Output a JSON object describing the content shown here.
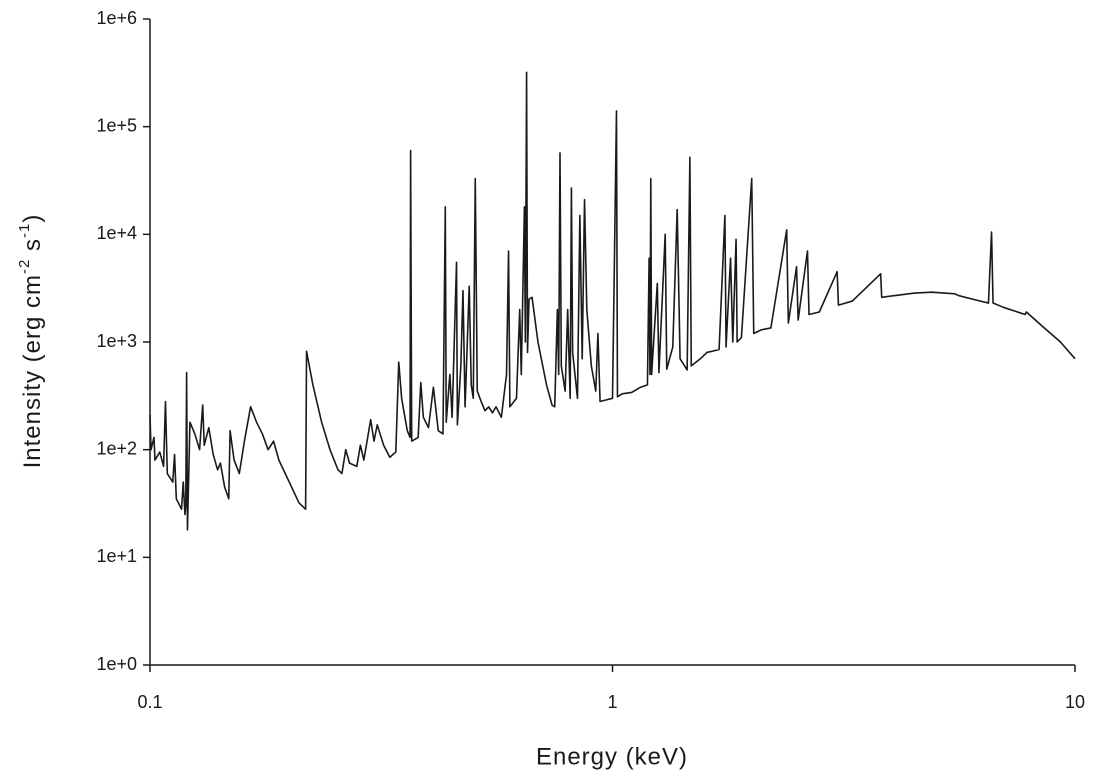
{
  "chart_data": {
    "type": "line",
    "xlabel": "Energy (keV)",
    "ylabel_parts": [
      "Intensity (erg cm",
      "-2",
      " s",
      "-1",
      ")"
    ],
    "xscale": "log",
    "yscale": "log",
    "xlim": [
      0.1,
      10
    ],
    "xticks": [
      0.1,
      1,
      10
    ],
    "ylim": [
      1,
      1000000
    ],
    "yticks": [
      {
        "value": 1,
        "label": "1e+0"
      },
      {
        "value": 10,
        "label": "1e+1"
      },
      {
        "value": 100,
        "label": "1e+2"
      },
      {
        "value": 1000,
        "label": "1e+3"
      },
      {
        "value": 10000,
        "label": "1e+4"
      },
      {
        "value": 100000,
        "label": "1e+5"
      },
      {
        "value": 1000000,
        "label": "1e+6"
      }
    ],
    "color": "#1a1a1a",
    "x": [
      0.1,
      0.1005,
      0.102,
      0.1025,
      0.105,
      0.107,
      0.108,
      0.109,
      0.112,
      0.113,
      0.114,
      0.117,
      0.118,
      0.119,
      0.1195,
      0.12,
      0.1205,
      0.122,
      0.125,
      0.128,
      0.13,
      0.131,
      0.134,
      0.137,
      0.14,
      0.142,
      0.145,
      0.148,
      0.149,
      0.152,
      0.156,
      0.16,
      0.165,
      0.17,
      0.175,
      0.18,
      0.185,
      0.19,
      0.2,
      0.21,
      0.217,
      0.218,
      0.225,
      0.235,
      0.245,
      0.255,
      0.26,
      0.265,
      0.27,
      0.28,
      0.285,
      0.29,
      0.3,
      0.305,
      0.31,
      0.32,
      0.33,
      0.34,
      0.345,
      0.35,
      0.36,
      0.365,
      0.366,
      0.368,
      0.38,
      0.385,
      0.39,
      0.4,
      0.41,
      0.42,
      0.43,
      0.435,
      0.437,
      0.445,
      0.45,
      0.46,
      0.462,
      0.47,
      0.475,
      0.48,
      0.49,
      0.495,
      0.5,
      0.505,
      0.51,
      0.52,
      0.53,
      0.54,
      0.55,
      0.56,
      0.575,
      0.59,
      0.596,
      0.6,
      0.62,
      0.63,
      0.635,
      0.645,
      0.648,
      0.652,
      0.655,
      0.66,
      0.67,
      0.69,
      0.72,
      0.74,
      0.75,
      0.76,
      0.765,
      0.77,
      0.775,
      0.79,
      0.8,
      0.81,
      0.815,
      0.82,
      0.84,
      0.85,
      0.86,
      0.87,
      0.88,
      0.9,
      0.92,
      0.93,
      0.94,
      0.97,
      1.0,
      1.02,
      1.025,
      1.05,
      1.1,
      1.15,
      1.19,
      1.2,
      1.205,
      1.21,
      1.215,
      1.25,
      1.26,
      1.3,
      1.31,
      1.35,
      1.38,
      1.4,
      1.45,
      1.47,
      1.48,
      1.55,
      1.6,
      1.7,
      1.75,
      1.76,
      1.8,
      1.82,
      1.85,
      1.86,
      1.9,
      2.0,
      2.02,
      2.1,
      2.2,
      2.38,
      2.4,
      2.5,
      2.52,
      2.64,
      2.66,
      2.8,
      3.06,
      3.08,
      3.3,
      3.8,
      3.82,
      4.5,
      4.9,
      5.5,
      5.6,
      6.0,
      6.5,
      6.6,
      6.65,
      7.0,
      7.8,
      7.85,
      8.5,
      9.3,
      10
    ],
    "values": [
      210,
      100,
      130,
      80,
      95,
      70,
      280,
      60,
      50,
      90,
      35,
      28,
      50,
      25,
      30,
      520,
      18,
      180,
      140,
      100,
      260,
      110,
      160,
      90,
      65,
      75,
      45,
      35,
      150,
      80,
      60,
      120,
      250,
      180,
      140,
      100,
      120,
      80,
      50,
      32,
      28,
      820,
      400,
      180,
      100,
      65,
      60,
      100,
      75,
      70,
      110,
      80,
      190,
      120,
      170,
      110,
      85,
      95,
      650,
      300,
      150,
      130,
      60000,
      120,
      130,
      420,
      200,
      160,
      380,
      150,
      140,
      18000,
      180,
      500,
      200,
      5500,
      170,
      600,
      3000,
      250,
      3300,
      400,
      300,
      33000,
      350,
      280,
      230,
      250,
      220,
      250,
      200,
      500,
      7000,
      250,
      300,
      2000,
      500,
      18000,
      1000,
      320000,
      800,
      2500,
      2600,
      1000,
      400,
      260,
      250,
      2000,
      500,
      57000,
      600,
      350,
      2000,
      300,
      27000,
      800,
      300,
      15000,
      700,
      21000,
      2000,
      600,
      350,
      1200,
      280,
      290,
      300,
      140000,
      310,
      330,
      340,
      380,
      400,
      6000,
      500,
      33000,
      500,
      3500,
      520,
      10000,
      560,
      900,
      17000,
      700,
      550,
      52000,
      600,
      700,
      800,
      850,
      15000,
      900,
      6000,
      1000,
      9000,
      1000,
      1100,
      33000,
      1200,
      1300,
      1350,
      11000,
      1500,
      5000,
      1600,
      7000,
      1800,
      1900,
      4500,
      2200,
      2400,
      4300,
      2600,
      2850,
      2900,
      2800,
      2700,
      2500,
      2300,
      10500,
      2300,
      2100,
      1800,
      1900,
      1400,
      1000,
      700
    ]
  }
}
